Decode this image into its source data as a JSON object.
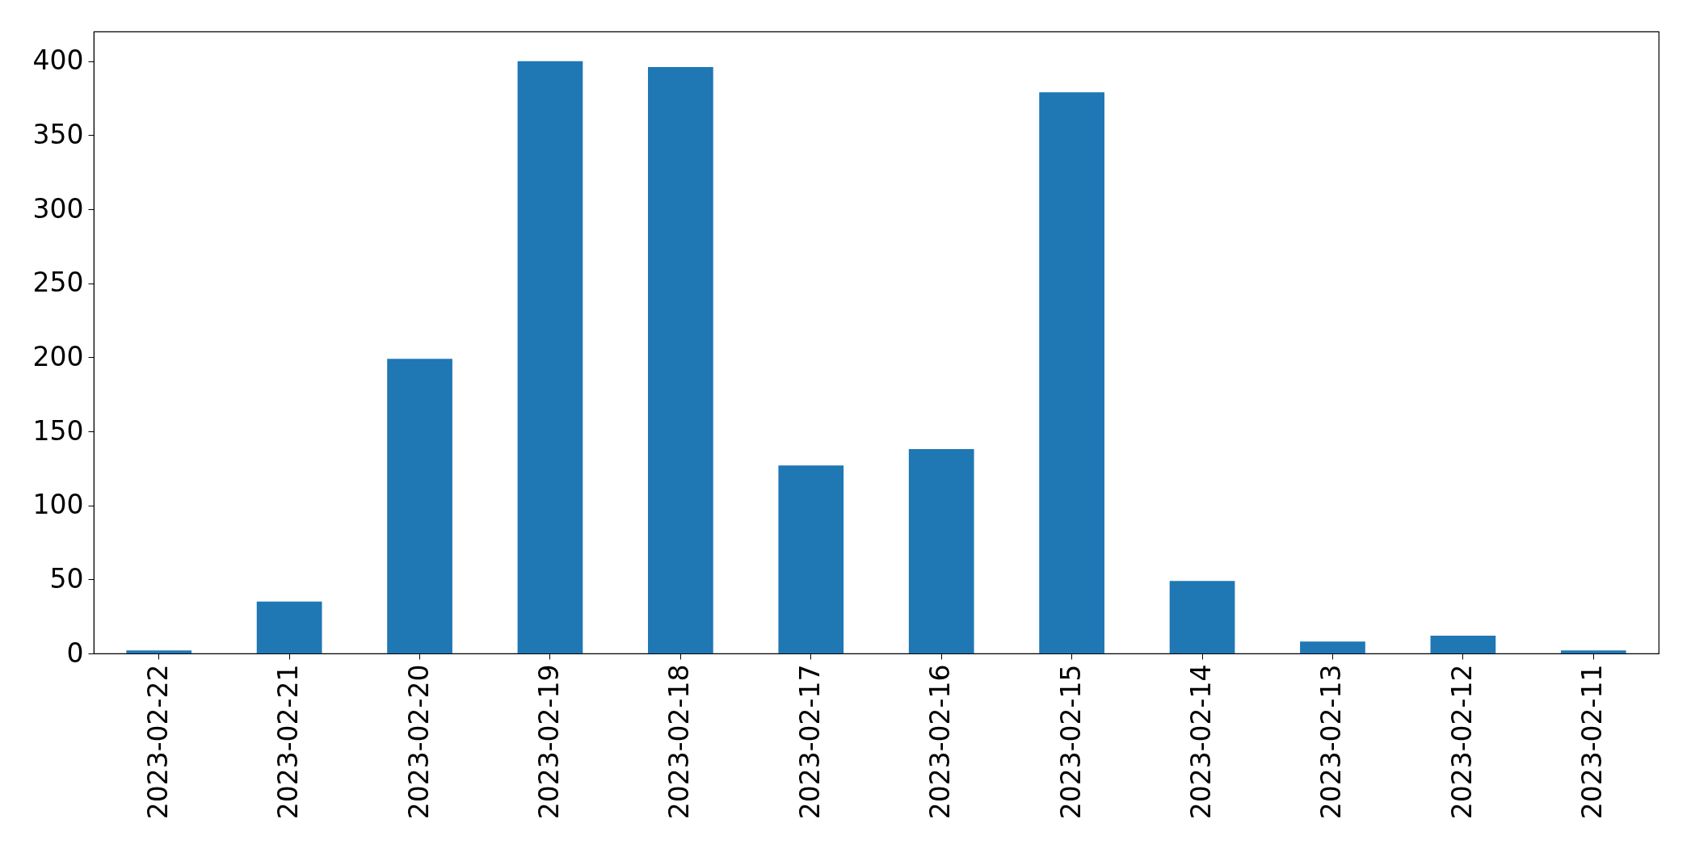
{
  "chart_data": {
    "type": "bar",
    "categories": [
      "2023-02-22",
      "2023-02-21",
      "2023-02-20",
      "2023-02-19",
      "2023-02-18",
      "2023-02-17",
      "2023-02-16",
      "2023-02-15",
      "2023-02-14",
      "2023-02-13",
      "2023-02-12",
      "2023-02-11"
    ],
    "values": [
      2,
      35,
      199,
      400,
      396,
      127,
      138,
      379,
      49,
      8,
      12,
      2
    ],
    "color": "#1f77b4",
    "ylim": [
      0,
      420
    ],
    "yticks": [
      0,
      50,
      100,
      150,
      200,
      250,
      300,
      350,
      400
    ]
  }
}
